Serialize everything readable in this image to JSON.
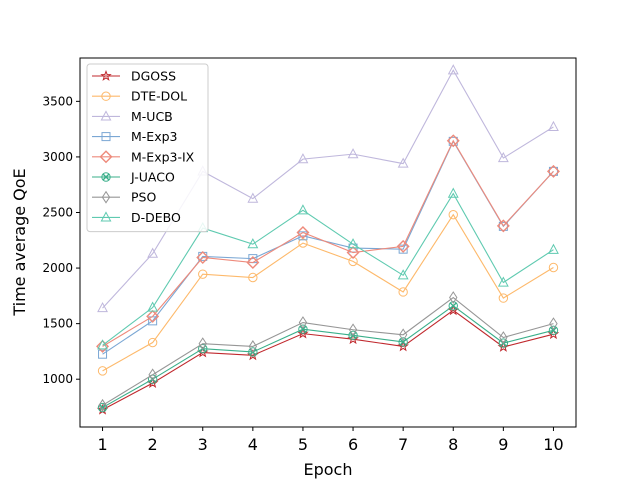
{
  "chart_data": {
    "type": "line",
    "xlabel": "Epoch",
    "ylabel": "Time average QoE",
    "x": [
      1,
      2,
      3,
      4,
      5,
      6,
      7,
      8,
      9,
      10
    ],
    "xticks": [
      "1",
      "2",
      "3",
      "4",
      "5",
      "6",
      "7",
      "8",
      "9",
      "10"
    ],
    "yticks": [
      "1000",
      "1500",
      "2000",
      "2500",
      "3000",
      "3500"
    ],
    "ylim": [
      570,
      3890
    ],
    "xlim": [
      0.55,
      10.45
    ],
    "grid": false,
    "legend_position": "upper-left",
    "series": [
      {
        "name": "DGOSS",
        "color": "#c0282d",
        "marker": "star",
        "values": [
          725,
          965,
          1240,
          1215,
          1410,
          1360,
          1295,
          1620,
          1290,
          1405
        ]
      },
      {
        "name": "DTE-DOL",
        "color": "#fdb96b",
        "marker": "circle",
        "values": [
          1075,
          1330,
          1945,
          1915,
          2225,
          2060,
          1785,
          2480,
          1730,
          2005
        ]
      },
      {
        "name": "M-UCB",
        "color": "#bfb7dc",
        "marker": "triangle",
        "values": [
          1640,
          2130,
          2870,
          2625,
          2980,
          3025,
          2940,
          3780,
          2990,
          3270
        ]
      },
      {
        "name": "M-Exp3",
        "color": "#7ba7d4",
        "marker": "square",
        "values": [
          1225,
          1525,
          2105,
          2085,
          2290,
          2180,
          2170,
          3140,
          2375,
          2870
        ]
      },
      {
        "name": "M-Exp3-IX",
        "color": "#ee8a7b",
        "marker": "diamond",
        "values": [
          1295,
          1565,
          2095,
          2050,
          2320,
          2140,
          2195,
          3145,
          2380,
          2870
        ]
      },
      {
        "name": "J-UACO",
        "color": "#3aaf8a",
        "marker": "circle-x",
        "values": [
          745,
          1000,
          1275,
          1245,
          1450,
          1395,
          1335,
          1660,
          1325,
          1440
        ]
      },
      {
        "name": "PSO",
        "color": "#969696",
        "marker": "thin-diamond",
        "values": [
          765,
          1040,
          1320,
          1295,
          1510,
          1445,
          1400,
          1735,
          1375,
          1500
        ]
      },
      {
        "name": "D-DEBO",
        "color": "#5fcab0",
        "marker": "triangle",
        "values": [
          1305,
          1645,
          2360,
          2215,
          2520,
          2215,
          1935,
          2670,
          1870,
          2165
        ]
      }
    ]
  }
}
